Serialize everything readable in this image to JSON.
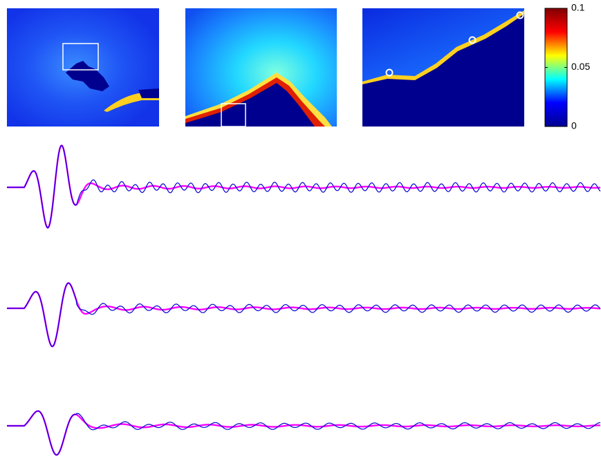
{
  "chart_data": {
    "type": "colorbar",
    "clim": [
      0,
      0.1
    ],
    "cticks": [
      0,
      0.05,
      0.1
    ],
    "colors": [
      "#00008f",
      "#0000ff",
      "#00ffff",
      "#ffff00",
      "#ff0000",
      "#800000"
    ]
  }
}
